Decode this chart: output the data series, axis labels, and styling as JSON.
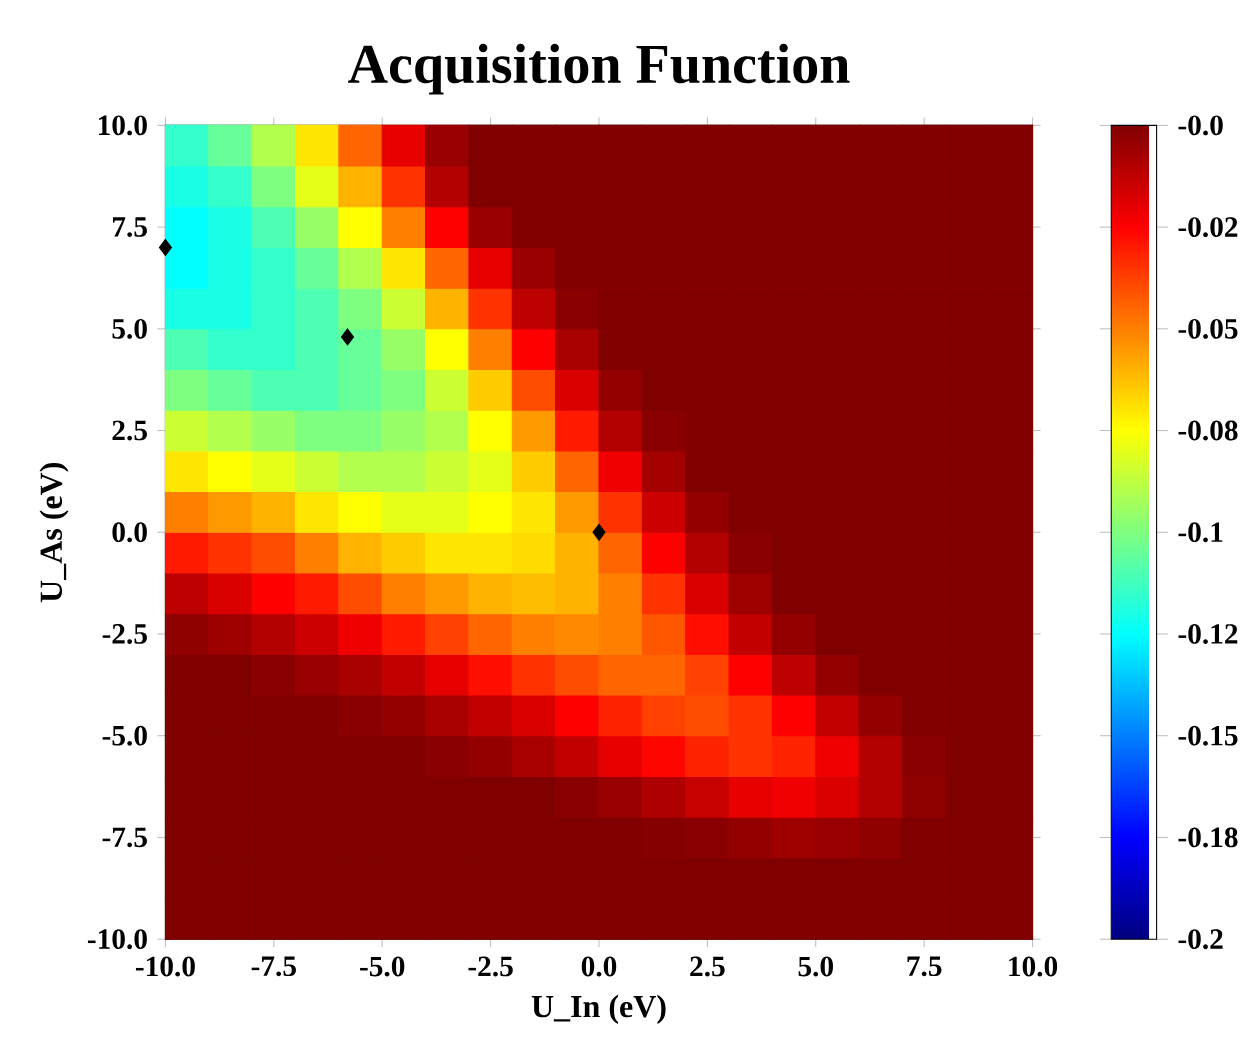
{
  "chart_data": {
    "type": "heatmap",
    "title": "Acquisition Function",
    "xlabel": "U_In (eV)",
    "ylabel": "U_As (eV)",
    "x": [
      -9.5,
      -8.5,
      -7.5,
      -6.5,
      -5.5,
      -4.5,
      -3.5,
      -2.5,
      -1.5,
      -0.5,
      0.5,
      1.5,
      2.5,
      3.5,
      4.5,
      5.5,
      6.5,
      7.5,
      8.5,
      9.5
    ],
    "y": [
      9.5,
      8.5,
      7.5,
      6.5,
      5.5,
      4.5,
      3.5,
      2.5,
      1.5,
      0.5,
      -0.5,
      -1.5,
      -2.5,
      -3.5,
      -4.5,
      -5.5,
      -6.5,
      -7.5,
      -8.5,
      -9.5
    ],
    "cells": [
      [
        -0.115,
        -0.105,
        -0.09,
        -0.07,
        -0.045,
        -0.02,
        -0.005,
        0,
        0,
        0,
        0,
        0,
        0,
        0,
        0,
        0,
        0,
        0,
        0,
        0
      ],
      [
        -0.12,
        -0.115,
        -0.1,
        -0.08,
        -0.06,
        -0.035,
        -0.01,
        0,
        0,
        0,
        0,
        0,
        0,
        0,
        0,
        0,
        0,
        0,
        0,
        0
      ],
      [
        -0.125,
        -0.12,
        -0.11,
        -0.095,
        -0.075,
        -0.05,
        -0.025,
        -0.005,
        0,
        0,
        0,
        0,
        0,
        0,
        0,
        0,
        0,
        0,
        0,
        0
      ],
      [
        -0.125,
        -0.12,
        -0.115,
        -0.105,
        -0.09,
        -0.07,
        -0.045,
        -0.02,
        -0.005,
        0,
        0,
        0,
        0,
        0,
        0,
        0,
        0,
        0,
        0,
        0
      ],
      [
        -0.12,
        -0.12,
        -0.115,
        -0.11,
        -0.1,
        -0.085,
        -0.06,
        -0.035,
        -0.012,
        -0.002,
        0,
        0,
        0,
        0,
        0,
        0,
        0,
        0,
        0,
        0
      ],
      [
        -0.11,
        -0.115,
        -0.115,
        -0.11,
        -0.105,
        -0.095,
        -0.075,
        -0.05,
        -0.025,
        -0.008,
        0,
        0,
        0,
        0,
        0,
        0,
        0,
        0,
        0,
        0
      ],
      [
        -0.1,
        -0.105,
        -0.11,
        -0.11,
        -0.105,
        -0.1,
        -0.085,
        -0.065,
        -0.04,
        -0.018,
        -0.004,
        0,
        0,
        0,
        0,
        0,
        0,
        0,
        0,
        0
      ],
      [
        -0.085,
        -0.09,
        -0.095,
        -0.1,
        -0.1,
        -0.095,
        -0.09,
        -0.075,
        -0.055,
        -0.03,
        -0.01,
        -0.002,
        0,
        0,
        0,
        0,
        0,
        0,
        0,
        0
      ],
      [
        -0.07,
        -0.075,
        -0.08,
        -0.085,
        -0.09,
        -0.09,
        -0.085,
        -0.08,
        -0.065,
        -0.045,
        -0.022,
        -0.007,
        0,
        0,
        0,
        0,
        0,
        0,
        0,
        0
      ],
      [
        -0.05,
        -0.055,
        -0.06,
        -0.07,
        -0.075,
        -0.08,
        -0.08,
        -0.075,
        -0.07,
        -0.055,
        -0.035,
        -0.015,
        -0.004,
        0,
        0,
        0,
        0,
        0,
        0,
        0
      ],
      [
        -0.03,
        -0.035,
        -0.04,
        -0.05,
        -0.06,
        -0.065,
        -0.07,
        -0.07,
        -0.068,
        -0.06,
        -0.045,
        -0.025,
        -0.01,
        -0.002,
        0,
        0,
        0,
        0,
        0,
        0
      ],
      [
        -0.012,
        -0.018,
        -0.025,
        -0.03,
        -0.04,
        -0.05,
        -0.055,
        -0.06,
        -0.062,
        -0.06,
        -0.05,
        -0.035,
        -0.018,
        -0.006,
        0,
        0,
        0,
        0,
        0,
        0
      ],
      [
        -0.003,
        -0.006,
        -0.01,
        -0.015,
        -0.022,
        -0.03,
        -0.038,
        -0.045,
        -0.05,
        -0.052,
        -0.05,
        -0.042,
        -0.028,
        -0.013,
        -0.004,
        0,
        0,
        0,
        0,
        0
      ],
      [
        0,
        0,
        -0.002,
        -0.005,
        -0.008,
        -0.013,
        -0.02,
        -0.028,
        -0.035,
        -0.04,
        -0.045,
        -0.045,
        -0.038,
        -0.025,
        -0.012,
        -0.004,
        0,
        0,
        0,
        0
      ],
      [
        0,
        0,
        0,
        0,
        -0.002,
        -0.004,
        -0.008,
        -0.013,
        -0.018,
        -0.025,
        -0.032,
        -0.038,
        -0.04,
        -0.035,
        -0.025,
        -0.013,
        -0.004,
        0,
        0,
        0
      ],
      [
        0,
        0,
        0,
        0,
        0,
        0,
        -0.002,
        -0.004,
        -0.008,
        -0.013,
        -0.02,
        -0.026,
        -0.032,
        -0.035,
        -0.032,
        -0.022,
        -0.01,
        -0.002,
        0,
        0
      ],
      [
        0,
        0,
        0,
        0,
        0,
        0,
        0,
        0,
        0,
        -0.002,
        -0.005,
        -0.009,
        -0.014,
        -0.02,
        -0.022,
        -0.018,
        -0.01,
        -0.003,
        0,
        0
      ],
      [
        0,
        0,
        0,
        0,
        0,
        0,
        0,
        0,
        0,
        0,
        0,
        -0.001,
        -0.002,
        -0.004,
        -0.006,
        -0.005,
        -0.003,
        0,
        0,
        0
      ],
      [
        0,
        0,
        0,
        0,
        0,
        0,
        0,
        0,
        0,
        0,
        0,
        0,
        0,
        0,
        0,
        0,
        0,
        0,
        0,
        0
      ],
      [
        0,
        0,
        0,
        0,
        0,
        0,
        0,
        0,
        0,
        0,
        0,
        0,
        0,
        0,
        0,
        0,
        0,
        0,
        0,
        0
      ]
    ],
    "xlim": [
      -10,
      10
    ],
    "ylim": [
      -10,
      10
    ],
    "xticks": [
      {
        "value": -10,
        "label": "-10.0"
      },
      {
        "value": -7.5,
        "label": "-7.5"
      },
      {
        "value": -5,
        "label": "-5.0"
      },
      {
        "value": -2.5,
        "label": "-2.5"
      },
      {
        "value": 0,
        "label": "0.0"
      },
      {
        "value": 2.5,
        "label": "2.5"
      },
      {
        "value": 5,
        "label": "5.0"
      },
      {
        "value": 7.5,
        "label": "7.5"
      },
      {
        "value": 10,
        "label": "10.0"
      }
    ],
    "yticks": [
      {
        "value": -10,
        "label": "-10.0"
      },
      {
        "value": -7.5,
        "label": "-7.5"
      },
      {
        "value": -5,
        "label": "-5.0"
      },
      {
        "value": -2.5,
        "label": "-2.5"
      },
      {
        "value": 0,
        "label": "0.0"
      },
      {
        "value": 2.5,
        "label": "2.5"
      },
      {
        "value": 5,
        "label": "5.0"
      },
      {
        "value": 7.5,
        "label": "7.5"
      },
      {
        "value": 10,
        "label": "10.0"
      }
    ],
    "clim": [
      -0.2,
      0
    ],
    "cticks": [
      {
        "value": 0,
        "label": "-0.0"
      },
      {
        "value": -0.025,
        "label": "-0.02"
      },
      {
        "value": -0.05,
        "label": "-0.05"
      },
      {
        "value": -0.075,
        "label": "-0.08"
      },
      {
        "value": -0.1,
        "label": "-0.1"
      },
      {
        "value": -0.125,
        "label": "-0.12"
      },
      {
        "value": -0.15,
        "label": "-0.15"
      },
      {
        "value": -0.175,
        "label": "-0.18"
      },
      {
        "value": -0.2,
        "label": "-0.2"
      }
    ],
    "marker": "diamond",
    "series": [
      {
        "type": "scatter",
        "x": [
          -10,
          -5.8,
          0
        ],
        "values": [
          7,
          4.8,
          0
        ],
        "color": "#000000"
      }
    ]
  }
}
